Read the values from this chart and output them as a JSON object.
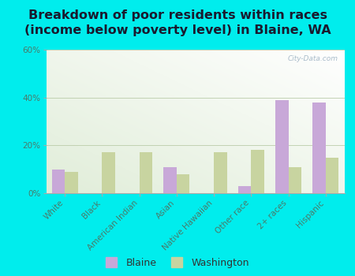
{
  "title": "Breakdown of poor residents within races\n(income below poverty level) in Blaine, WA",
  "categories": [
    "White",
    "Black",
    "American Indian",
    "Asian",
    "Native Hawaiian",
    "Other race",
    "2+ races",
    "Hispanic"
  ],
  "blaine_values": [
    10,
    0,
    0,
    11,
    0,
    3,
    39,
    38
  ],
  "washington_values": [
    9,
    17,
    17,
    8,
    17,
    18,
    11,
    15
  ],
  "blaine_color": "#c8a8d8",
  "washington_color": "#c8d4a0",
  "background_outer": "#00eded",
  "ylim": [
    0,
    60
  ],
  "yticks": [
    0,
    20,
    40,
    60
  ],
  "ytick_labels": [
    "0%",
    "20%",
    "40%",
    "60%"
  ],
  "bar_width": 0.35,
  "title_fontsize": 11.5,
  "tick_fontsize": 7.5,
  "legend_fontsize": 9,
  "title_color": "#1a1a2e",
  "tick_color": "#4a7a6a",
  "watermark": "City-Data.com"
}
